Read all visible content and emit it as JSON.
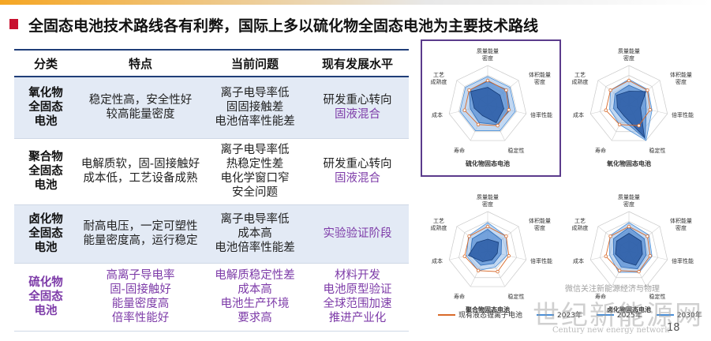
{
  "title": "全固态电池技术路线各有利弊，国际上多以硫化物全固态电池为主要技术路线",
  "colors": {
    "title_mark": "#c8102e",
    "header_rule": "#1f3e78",
    "shade": "#e3eaf5",
    "purple": "#7d3ba8"
  },
  "table": {
    "headers": [
      "分类",
      "特点",
      "当前问题",
      "现有发展水平"
    ],
    "rows": [
      {
        "category": [
          "氧化物",
          "全固态",
          "电池"
        ],
        "features": [
          "稳定性高，安全性好",
          "较高能量密度"
        ],
        "issues": [
          "离子电导率低",
          "固固接触差",
          "电池倍率性能差"
        ],
        "level": [
          "研发重心转向",
          "固液混合"
        ]
      },
      {
        "category": [
          "聚合物",
          "全固态",
          "电池"
        ],
        "features": [
          "电解质软，固-固接触好",
          "成本低，工艺设备成熟"
        ],
        "issues": [
          "离子电导率低",
          "热稳定性差",
          "电化学窗口窄",
          "安全问题"
        ],
        "level": [
          "研发重心转向",
          "固液混合"
        ]
      },
      {
        "category": [
          "卤化物",
          "全固态",
          "电池"
        ],
        "features": [
          "耐高电压，一定可塑性",
          "能量密度高，运行稳定"
        ],
        "issues": [
          "离子电导率低",
          "成本高",
          "电池倍率性能差"
        ],
        "level": [
          "实验验证阶段"
        ]
      },
      {
        "category": [
          "硫化物",
          "全固态",
          "电池"
        ],
        "features": [
          "高离子导电率",
          "固-固接触好",
          "能量密度高",
          "倍率性能好"
        ],
        "issues": [
          "电解质稳定性差",
          "成本高",
          "电池生产环境",
          "要求高"
        ],
        "level": [
          "材料开发",
          "电池原型验证",
          "全球范围加速",
          "推进产业化"
        ]
      }
    ]
  },
  "radar_axes": {
    "top": [
      "质量能量",
      "密度"
    ],
    "top_right": [
      "体积能量",
      "密度"
    ],
    "right": "倍率性能",
    "bottom_right": "稳定性",
    "bottom_left": "寿命",
    "left": "成本",
    "top_left": [
      "工艺",
      "成熟度"
    ]
  },
  "radars": [
    {
      "caption": "硫化物固态电池",
      "levels": {
        "outer": [
          0.72,
          0.72,
          0.72,
          0.72,
          0.72,
          0.72,
          0.72
        ],
        "mid": [
          0.6,
          0.62,
          0.58,
          0.55,
          0.5,
          0.45,
          0.6
        ],
        "inner": [
          0.45,
          0.4,
          0.42,
          0.5,
          0.3,
          0.35,
          0.55
        ]
      }
    },
    {
      "caption": "氧化物固态电池",
      "levels": {
        "outer": [
          0.65,
          0.62,
          0.6,
          1.0,
          0.55,
          0.5,
          0.6
        ],
        "mid": [
          0.5,
          0.52,
          0.45,
          0.95,
          0.4,
          0.4,
          0.45
        ],
        "inner": [
          0.35,
          0.55,
          0.3,
          0.9,
          0.3,
          0.3,
          0.4
        ]
      }
    },
    {
      "caption": "聚合物固态电池",
      "levels": {
        "outer": [
          0.72,
          0.6,
          0.5,
          0.45,
          0.55,
          0.55,
          0.62
        ],
        "mid": [
          0.55,
          0.45,
          0.35,
          0.35,
          0.4,
          0.45,
          0.5
        ],
        "inner": [
          0.3,
          0.35,
          0.25,
          0.25,
          0.3,
          0.5,
          0.35
        ]
      }
    },
    {
      "caption": "卤化物固态电池",
      "levels": {
        "outer": [
          0.72,
          0.65,
          0.6,
          0.6,
          0.6,
          0.5,
          0.62
        ],
        "mid": [
          0.6,
          0.5,
          0.45,
          0.5,
          0.45,
          0.4,
          0.5
        ],
        "inner": [
          0.45,
          0.4,
          0.35,
          0.4,
          0.3,
          0.35,
          0.4
        ]
      }
    }
  ],
  "legend": [
    "现有液态锂离子电池",
    "2023年",
    "2025年",
    "2030年"
  ],
  "watermark": {
    "main": "世纪新能源网",
    "sub": "Century new energy network",
    "note": "微信关注新能源经济与物理"
  },
  "page_number": "18"
}
